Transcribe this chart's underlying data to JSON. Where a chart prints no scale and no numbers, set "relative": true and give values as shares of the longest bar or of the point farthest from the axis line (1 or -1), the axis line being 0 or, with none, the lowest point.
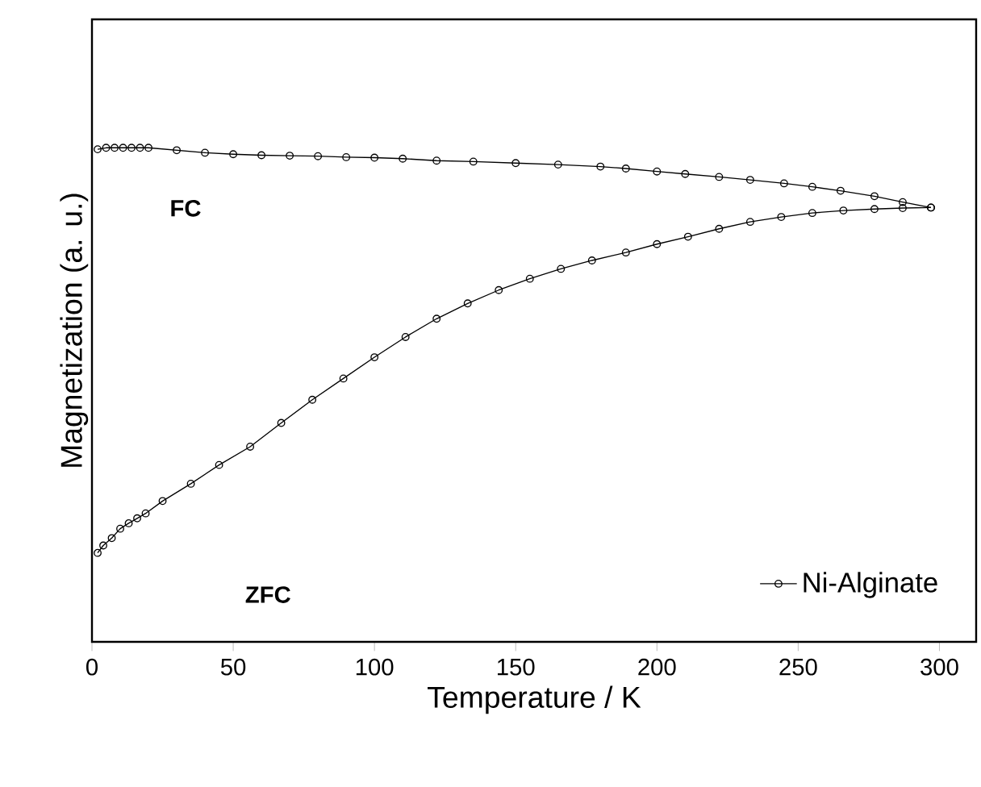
{
  "chart_data": {
    "type": "line",
    "relative": true,
    "xlabel": "Temperature / K",
    "ylabel": "Magnetization (a. u.)",
    "xlim": [
      0,
      313
    ],
    "xticks": [
      0,
      50,
      100,
      150,
      200,
      250,
      300
    ],
    "marker": "circle",
    "legend": "bottom right",
    "grid": false,
    "series": [
      {
        "name": "Ni-Alginate",
        "color": "#000000",
        "x": [
          2,
          5,
          8,
          11,
          14,
          17,
          20,
          30,
          40,
          50,
          60,
          70,
          80,
          90,
          100,
          110,
          122,
          135,
          150,
          165,
          180,
          189,
          200,
          210,
          222,
          233,
          245,
          255,
          265,
          277,
          287,
          297
        ],
        "values": [
          0.997,
          1.0,
          1.0,
          1.0,
          1.0,
          1.0,
          1.0,
          0.995,
          0.99,
          0.987,
          0.985,
          0.984,
          0.983,
          0.981,
          0.98,
          0.978,
          0.974,
          0.972,
          0.969,
          0.966,
          0.962,
          0.958,
          0.952,
          0.947,
          0.941,
          0.935,
          0.928,
          0.921,
          0.913,
          0.902,
          0.89,
          0.879
        ]
      },
      {
        "color": "#000000",
        "x": [
          2,
          4,
          7,
          10,
          13,
          16,
          19,
          25,
          35,
          45,
          56,
          67,
          78,
          89,
          100,
          111,
          122,
          133,
          144,
          155,
          166,
          177,
          189,
          200,
          211,
          222,
          233,
          244,
          255,
          266,
          277,
          287,
          297
        ],
        "values": [
          0.18,
          0.195,
          0.21,
          0.229,
          0.24,
          0.25,
          0.26,
          0.285,
          0.32,
          0.358,
          0.395,
          0.443,
          0.49,
          0.533,
          0.576,
          0.617,
          0.654,
          0.685,
          0.712,
          0.735,
          0.755,
          0.772,
          0.788,
          0.805,
          0.82,
          0.836,
          0.85,
          0.86,
          0.868,
          0.873,
          0.876,
          0.878,
          0.879
        ]
      }
    ],
    "annotations": [
      "FC",
      "ZFC"
    ]
  }
}
